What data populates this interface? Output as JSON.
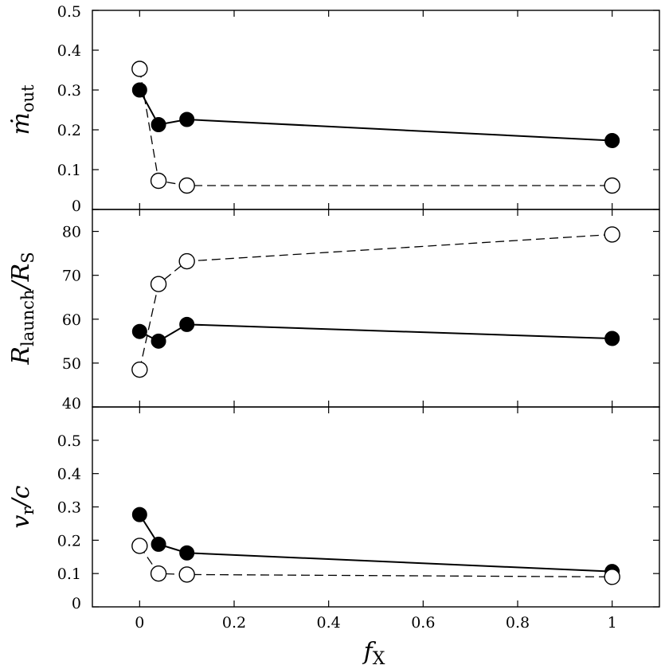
{
  "chart_data": [
    {
      "type": "line",
      "panel": "top",
      "ylabel": "ṁ_out",
      "ylabel_main": "ṁ",
      "ylabel_sub": "out",
      "ylim": [
        0,
        0.5
      ],
      "xlim": [
        -0.1,
        1.1
      ],
      "yticks": [
        0,
        0.1,
        0.2,
        0.3,
        0.4,
        0.5
      ],
      "ytick_labels": [
        "0",
        "0.1",
        "0.2",
        "0.3",
        "0.4",
        "0.5"
      ],
      "series": [
        {
          "name": "filled",
          "style": "solid",
          "marker": "filled-circle",
          "x": [
            0,
            0.04,
            0.1,
            1
          ],
          "values": [
            0.3,
            0.213,
            0.226,
            0.173
          ]
        },
        {
          "name": "open",
          "style": "dashed",
          "marker": "open-circle",
          "x": [
            0,
            0.04,
            0.1,
            1
          ],
          "values": [
            0.353,
            0.072,
            0.06,
            0.06
          ]
        }
      ]
    },
    {
      "type": "line",
      "panel": "middle",
      "ylabel": "R_launch/R_S",
      "ylabel_main": "R",
      "ylabel_sub": "launch",
      "ylabel_tail": "/R",
      "ylabel_tail_sub": "S",
      "ylim": [
        40,
        85
      ],
      "xlim": [
        -0.1,
        1.1
      ],
      "yticks": [
        40,
        50,
        60,
        70,
        80
      ],
      "ytick_labels": [
        "40",
        "50",
        "60",
        "70",
        "80"
      ],
      "series": [
        {
          "name": "filled",
          "style": "solid",
          "marker": "filled-circle",
          "x": [
            0,
            0.04,
            0.1,
            1
          ],
          "values": [
            57.2,
            55.0,
            58.8,
            55.6
          ]
        },
        {
          "name": "open",
          "style": "dashed",
          "marker": "open-circle",
          "x": [
            0,
            0.04,
            0.1,
            1
          ],
          "values": [
            48.5,
            68.0,
            73.2,
            79.3
          ]
        }
      ]
    },
    {
      "type": "line",
      "panel": "bottom",
      "ylabel": "v_r/c",
      "ylabel_main": "v",
      "ylabel_sub": "r",
      "ylabel_tail": "/c",
      "xlabel": "f_X",
      "xlabel_main": "f",
      "xlabel_sub": "X",
      "ylim": [
        0,
        0.6
      ],
      "xlim": [
        -0.1,
        1.1
      ],
      "yticks": [
        0,
        0.1,
        0.2,
        0.3,
        0.4,
        0.5
      ],
      "ytick_labels": [
        "0",
        "0.1",
        "0.2",
        "0.3",
        "0.4",
        "0.5"
      ],
      "xticks": [
        0,
        0.2,
        0.4,
        0.6,
        0.8,
        1
      ],
      "xtick_labels": [
        "0",
        "0.2",
        "0.4",
        "0.6",
        "0.8",
        "1"
      ],
      "series": [
        {
          "name": "filled",
          "style": "solid",
          "marker": "filled-circle",
          "x": [
            0,
            0.04,
            0.1,
            1
          ],
          "values": [
            0.277,
            0.188,
            0.162,
            0.106
          ]
        },
        {
          "name": "open",
          "style": "dashed",
          "marker": "open-circle",
          "x": [
            0,
            0.04,
            0.1,
            1
          ],
          "values": [
            0.183,
            0.1,
            0.097,
            0.09
          ]
        }
      ]
    }
  ]
}
